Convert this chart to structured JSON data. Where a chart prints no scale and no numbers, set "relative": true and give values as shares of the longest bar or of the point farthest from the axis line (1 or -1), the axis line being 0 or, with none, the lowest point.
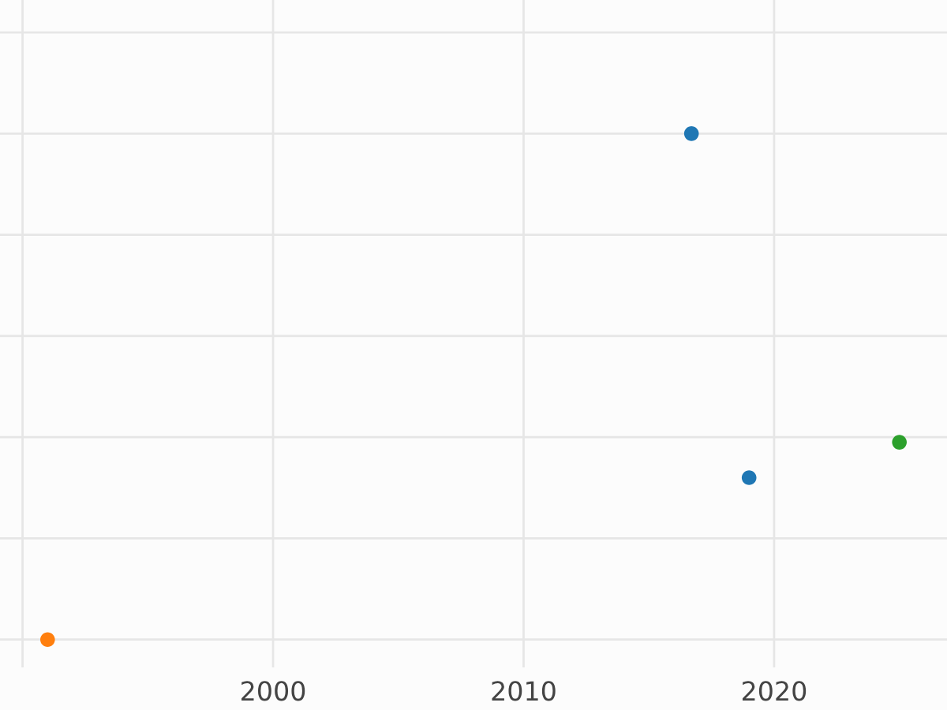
{
  "chart_data": {
    "type": "scatter",
    "relative": true,
    "xlim": [
      1989.1,
      2026.9
    ],
    "xticks": [
      {
        "value": 1990,
        "label": null
      },
      2000,
      2010,
      2020
    ],
    "series": [
      {
        "color": "#1f77b4",
        "x": [
          2016.7,
          2019.0
        ],
        "values": [
          1,
          0.32
        ]
      },
      {
        "color": "#ff7f0e",
        "x": [
          1991.0
        ],
        "values": [
          0
        ]
      },
      {
        "color": "#2ca02c",
        "x": [
          2025.0
        ],
        "values": [
          0.39
        ]
      }
    ],
    "grid": true,
    "marker": "circle",
    "legend": false
  }
}
